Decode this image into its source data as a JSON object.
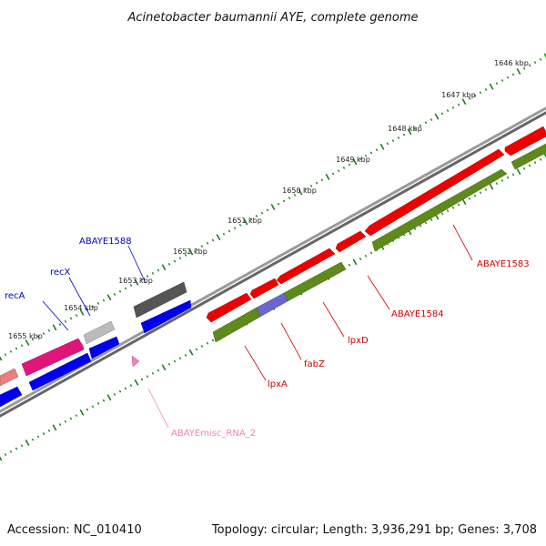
{
  "title": "Acinetobacter baumannii AYE, complete genome",
  "footer": {
    "accession": "Accession: NC_010410",
    "summary": "Topology: circular; Length: 3,936,291 bp; Genes: 3,708"
  },
  "ticks": [
    "1646 kbp",
    "1647 kbp",
    "1648 kbp",
    "1649 kbp",
    "1650 kbp",
    "1651 kbp",
    "1652 kbp",
    "1653 kbp",
    "1654 kbp",
    "1655 kbp"
  ],
  "features": {
    "recA": "recA",
    "recX": "recX",
    "ABAYE1588": "ABAYE1588",
    "ABAYE1583": "ABAYE1583",
    "ABAYE1584": "ABAYE1584",
    "lpxD": "lpxD",
    "fabZ": "fabZ",
    "lpxA": "lpxA",
    "ABAYEmisc_RNA_2": "ABAYEmisc_RNA_2"
  },
  "colors": {
    "red": "#ee0000",
    "pink": "#e0157a",
    "blue": "#0000ee",
    "olive": "#5e8a1c",
    "gray": "#555555",
    "lightgray": "#bbbbbb",
    "purple": "#6b66cc",
    "salmon": "#e98080",
    "rna": "#f07fbc",
    "tick": "#1a7d1a",
    "backbone": "#888888"
  }
}
